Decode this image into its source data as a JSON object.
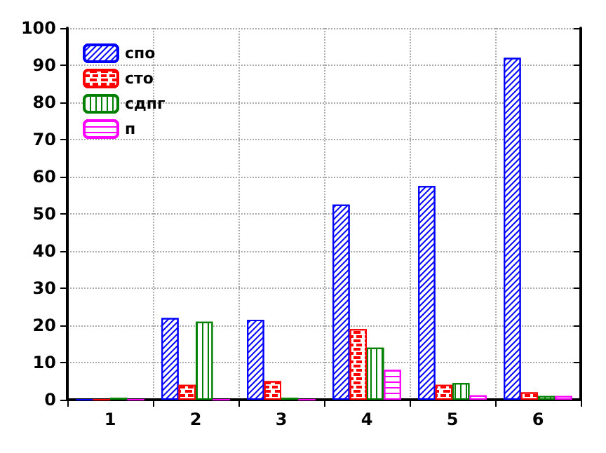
{
  "chart_data": {
    "type": "bar",
    "categories": [
      "1",
      "2",
      "3",
      "4",
      "5",
      "6"
    ],
    "series": [
      {
        "name": "спо",
        "color": "#0000ff",
        "values": [
          0,
          22,
          21.5,
          52.5,
          57.5,
          92
        ]
      },
      {
        "name": "сто",
        "color": "#ff0000",
        "values": [
          0,
          4,
          5,
          19,
          4,
          2
        ]
      },
      {
        "name": "сдпг",
        "color": "#008000",
        "values": [
          0.5,
          21,
          0.5,
          14,
          4.5,
          1
        ]
      },
      {
        "name": "п",
        "color": "#ff00ff",
        "values": [
          0,
          0,
          0,
          8,
          1.2,
          1
        ]
      }
    ],
    "ylim": [
      0,
      100
    ],
    "yticks": [
      0,
      10,
      20,
      30,
      40,
      50,
      60,
      70,
      80,
      90,
      100
    ],
    "grid": true,
    "legend": "top left"
  }
}
